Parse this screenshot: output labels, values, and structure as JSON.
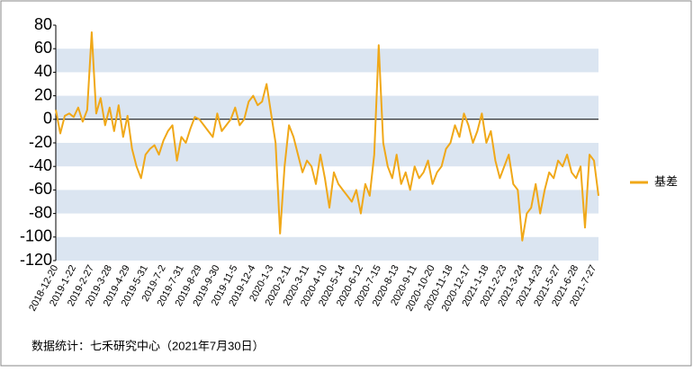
{
  "chart_data": {
    "type": "line",
    "categories": [
      "2018-12-20",
      null,
      null,
      null,
      "2019-1-22",
      null,
      null,
      null,
      "2019-2-27",
      null,
      null,
      null,
      "2019-3-28",
      null,
      null,
      null,
      "2019-4-29",
      null,
      null,
      null,
      "2019-5-31",
      null,
      null,
      null,
      "2019-7-2",
      null,
      null,
      null,
      "2019-7-31",
      null,
      null,
      null,
      "2019-8-29",
      null,
      null,
      null,
      "2019-9-30",
      null,
      null,
      null,
      "2019-11-5",
      null,
      null,
      null,
      "2019-12-4",
      null,
      null,
      null,
      "2020-1-3",
      null,
      null,
      null,
      "2020-2-11",
      null,
      null,
      null,
      "2020-3-11",
      null,
      null,
      null,
      "2020-4-10",
      null,
      null,
      null,
      "2020-5-14",
      null,
      null,
      null,
      "2020-6-12",
      null,
      null,
      null,
      "2020-7-15",
      null,
      null,
      null,
      "2020-8-13",
      null,
      null,
      null,
      "2020-9-11",
      null,
      null,
      null,
      "2020-10-20",
      null,
      null,
      null,
      "2020-11-18",
      null,
      null,
      null,
      "2020-12-17",
      null,
      null,
      null,
      "2021-1-18",
      null,
      null,
      null,
      "2021-2-23",
      null,
      null,
      null,
      "2021-3-24",
      null,
      null,
      null,
      "2021-4-23",
      null,
      null,
      null,
      "2021-5-27",
      null,
      null,
      null,
      "2021-6-28",
      null,
      null,
      null,
      "2021-7-27",
      null
    ],
    "series": [
      {
        "name": "基差",
        "color": "#f0a818",
        "values": [
          8,
          -12,
          3,
          5,
          2,
          10,
          -2,
          8,
          74,
          5,
          18,
          -5,
          10,
          -10,
          12,
          -15,
          3,
          -25,
          -40,
          -50,
          -30,
          -25,
          -22,
          -30,
          -18,
          -10,
          -5,
          -35,
          -15,
          -20,
          -8,
          2,
          0,
          -5,
          -10,
          -15,
          5,
          -10,
          -5,
          0,
          10,
          -5,
          0,
          15,
          20,
          12,
          15,
          30,
          5,
          -20,
          -97,
          -40,
          -5,
          -15,
          -30,
          -45,
          -35,
          -40,
          -55,
          -30,
          -50,
          -75,
          -45,
          -55,
          -60,
          -65,
          -70,
          -60,
          -80,
          -55,
          -65,
          -30,
          63,
          -20,
          -40,
          -50,
          -30,
          -55,
          -45,
          -60,
          -40,
          -50,
          -45,
          -35,
          -55,
          -45,
          -40,
          -25,
          -20,
          -5,
          -15,
          5,
          -5,
          -20,
          -10,
          5,
          -20,
          -10,
          -35,
          -50,
          -40,
          -30,
          -55,
          -60,
          -103,
          -80,
          -75,
          -55,
          -80,
          -60,
          -45,
          -50,
          -35,
          -40,
          -30,
          -45,
          -50,
          -40,
          -92,
          -30,
          -35,
          -65
        ]
      }
    ],
    "ylim": [
      -120,
      80
    ],
    "yticks": [
      -120,
      -100,
      -80,
      -60,
      -40,
      -20,
      0,
      20,
      40,
      60,
      80
    ],
    "bands": true,
    "legend": "right",
    "source": "数据统计：七禾研究中心（2021年7月30日）"
  }
}
